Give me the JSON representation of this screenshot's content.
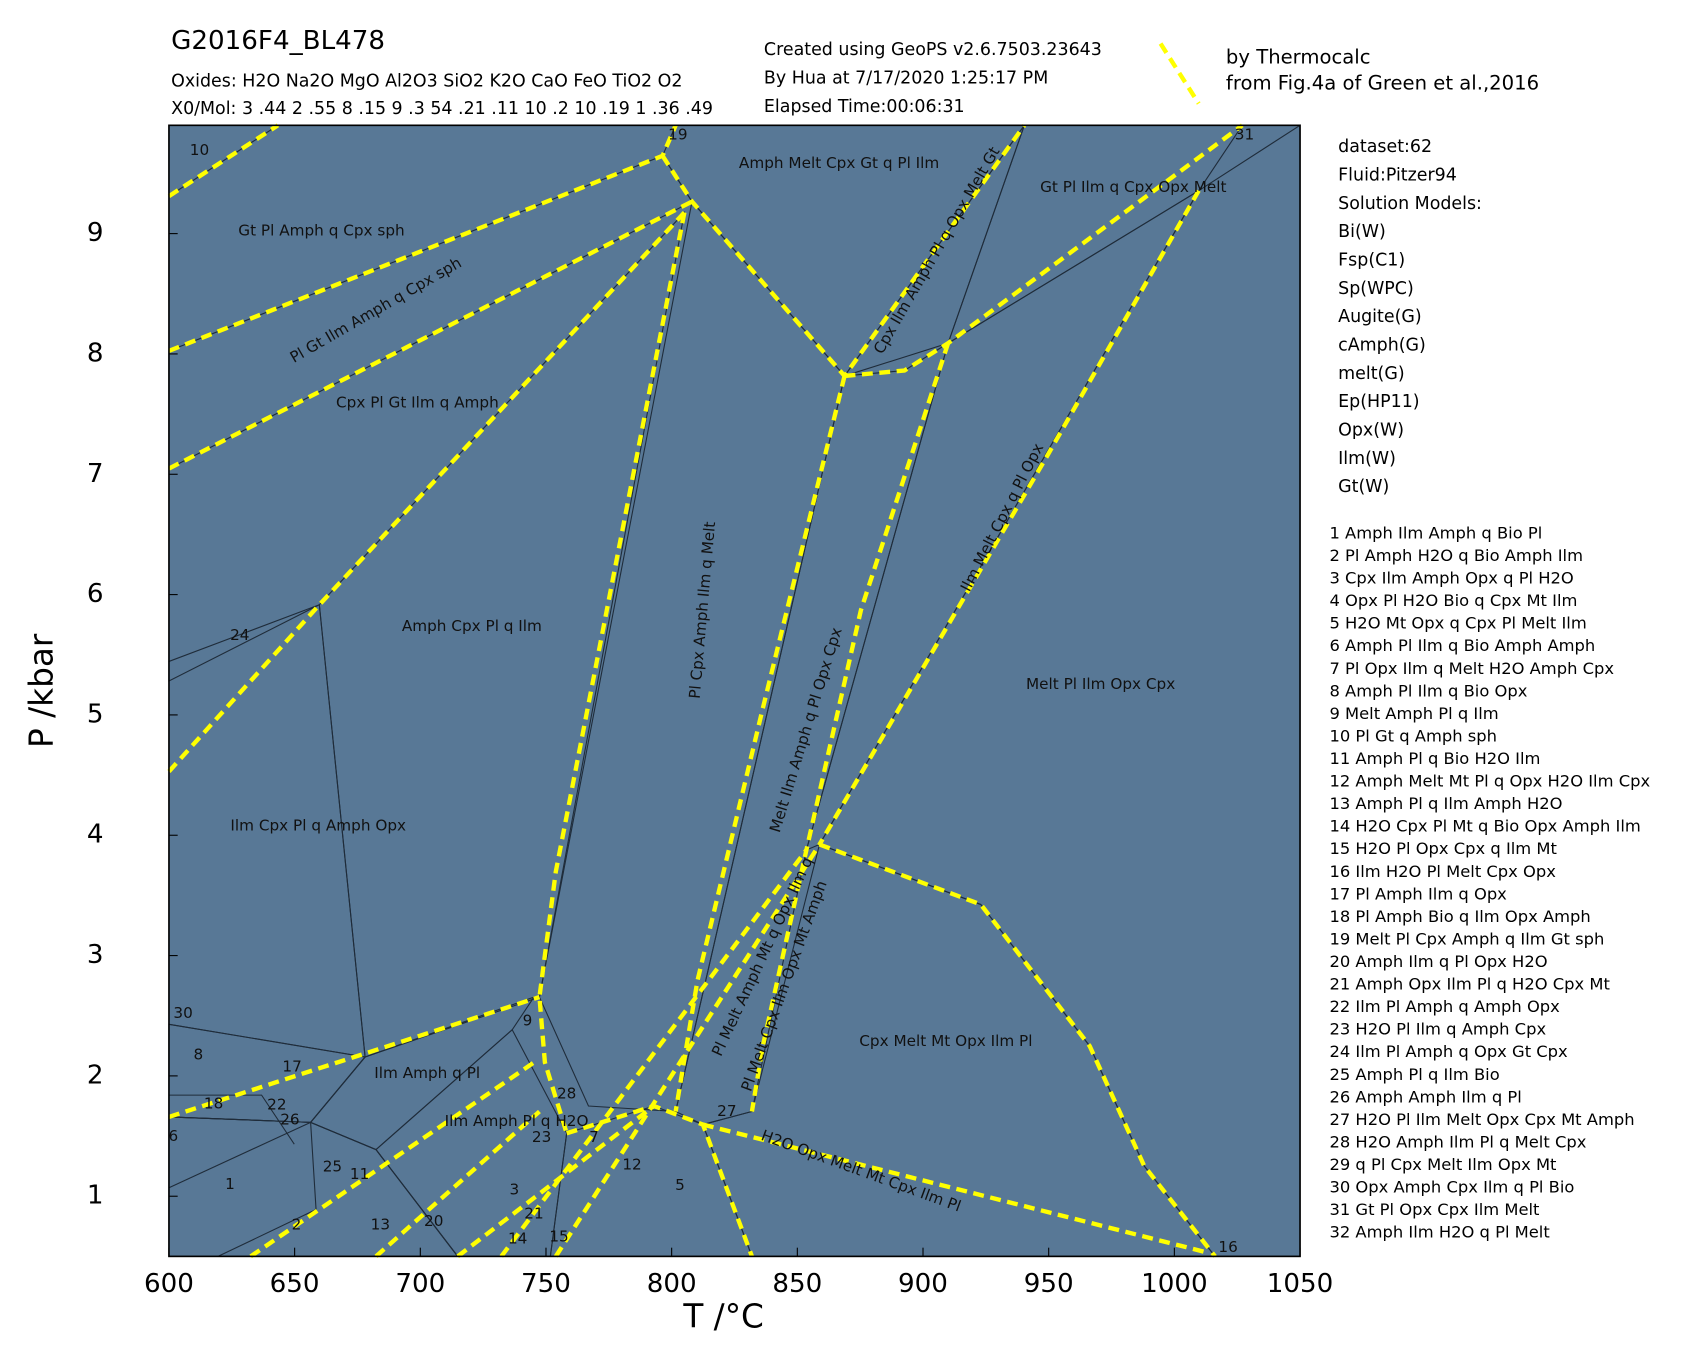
{
  "chart_data": {
    "type": "phase-diagram",
    "title": "G2016F4_BL478",
    "subtitle_lines": [
      "Oxides: H2O Na2O MgO Al2O3 SiO2 K2O CaO FeO TiO2 O2",
      "X0/Mol: 3 .44 2 .55 8 .15 9 .3 54 .21 .11 10 .2 10 .19 1 .36 .49"
    ],
    "info_lines": [
      "Created using GeoPS v2.6.7503.23643",
      "By Hua at 7/17/2020 1:25:17 PM",
      "Elapsed Time:00:06:31"
    ],
    "reference": {
      "name": "by Thermocalc",
      "note": "from Fig.4a of Green et al.,2016",
      "color": "#ffff00"
    },
    "x_label": "T /°C",
    "y_label": "P /kbar",
    "xlim": [
      600,
      1050
    ],
    "ylim": [
      0.5,
      9.9
    ],
    "xticks": [
      600,
      650,
      700,
      750,
      800,
      850,
      900,
      950,
      1000,
      1050
    ],
    "yticks": [
      1,
      2,
      3,
      4,
      5,
      6,
      7,
      8,
      9
    ],
    "settings_lines": [
      "dataset:62",
      "Fluid:Pitzer94",
      "Solution Models:",
      "Bi(W)",
      "Fsp(C1)",
      "Sp(WPC)",
      "Augite(G)",
      "cAmph(G)",
      "melt(G)",
      "Ep(HP11)",
      "Opx(W)",
      "Ilm(W)",
      "Gt(W)"
    ],
    "assemblages": [
      "1 Amph Ilm Amph q Bio Pl",
      "2 Pl Amph H2O q Bio Amph Ilm",
      "3 Cpx Ilm Amph Opx q Pl H2O",
      "4 Opx Pl H2O Bio q Cpx Mt Ilm",
      "5 H2O Mt Opx q Cpx Pl Melt Ilm",
      "6 Amph Pl Ilm q Bio Amph Amph",
      "7 Pl Opx Ilm q Melt H2O Amph Cpx",
      "8 Amph Pl Ilm q Bio Opx",
      "9 Melt Amph Pl q Ilm",
      "10 Pl Gt q Amph sph",
      "11 Amph Pl q Bio H2O Ilm",
      "12 Amph Melt Mt Pl q Opx H2O Ilm Cpx",
      "13 Amph Pl q Ilm Amph H2O",
      "14 H2O Cpx Pl Mt q Bio Opx Amph Ilm",
      "15 H2O Pl Opx Cpx q Ilm Mt",
      "16 Ilm H2O Pl Melt Cpx Opx",
      "17 Pl Amph Ilm q Opx",
      "18 Pl Amph Bio q Ilm Opx Amph",
      "19 Melt Pl Cpx Amph q Ilm Gt sph",
      "20 Amph Ilm q Pl Opx H2O",
      "21 Amph Opx Ilm Pl q H2O Cpx Mt",
      "22 Ilm Pl Amph q Amph Opx",
      "23 H2O Pl Ilm q Amph Cpx",
      "24 Ilm Pl Amph q Opx Gt Cpx",
      "25 Amph Pl q Ilm Bio",
      "26 Amph Amph Ilm q Pl",
      "27 H2O Pl Ilm Melt Opx Cpx Mt Amph",
      "28 H2O Amph Ilm Pl q Melt Cpx",
      "29 q Pl Cpx Melt Ilm Opx Mt",
      "30 Opx Amph Cpx Ilm q Pl Bio",
      "31 Gt Pl Opx Cpx Ilm Melt",
      "32 Amph Ilm H2O q Pl Melt"
    ],
    "fields": [
      "Amph Melt Cpx Gt q Pl Ilm",
      "Gt Pl Ilm q Cpx Opx Melt",
      "Gt Pl Amph q Cpx sph",
      "Pl Gt Ilm Amph q Cpx sph",
      "Cpx Pl Gt Ilm q Amph",
      "Cpx Ilm Amph Pl q Opx Melt Gt",
      "Ilm Melt Cpx q Pl Opx",
      "Pl Cpx Amph Ilm q Melt",
      "Amph Cpx Pl q Ilm",
      "Melt Pl Ilm Opx Cpx",
      "Melt Ilm Amph q Pl Opx Cpx",
      "Ilm Cpx Pl q Amph Opx",
      "Cpx Melt Mt Opx Ilm Pl",
      "Ilm Amph q Pl",
      "Ilm Amph Pl q H2O",
      "H2O Opx Melt Mt Cpx Ilm Pl",
      "Pl Melt Amph Mt q Opx Ilm q",
      "Pl Melt Cpx Ilm Opx Mt Amph"
    ],
    "field_numbers": [
      "10",
      "19",
      "31",
      "24",
      "30",
      "8",
      "17",
      "18",
      "22",
      "26",
      "6",
      "9",
      "28",
      "23",
      "7",
      "27",
      "12",
      "5",
      "1",
      "25",
      "11",
      "2",
      "13",
      "20",
      "3",
      "21",
      "14",
      "15",
      "16"
    ]
  }
}
